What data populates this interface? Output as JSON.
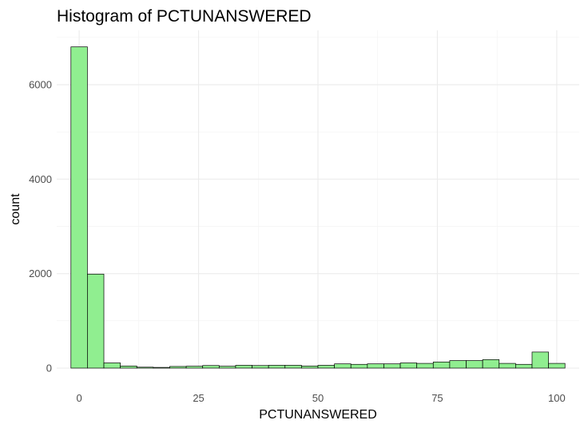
{
  "chart_data": {
    "type": "bar",
    "title": "Histogram of PCTUNANSWERED",
    "xlabel": "PCTUNANSWERED",
    "ylabel": "count",
    "bin_width": 3.448,
    "bin_centers": [
      0,
      3.448,
      6.897,
      10.345,
      13.793,
      17.241,
      20.69,
      24.138,
      27.586,
      31.034,
      34.483,
      37.931,
      41.379,
      44.828,
      48.276,
      51.724,
      55.172,
      58.621,
      62.069,
      65.517,
      68.966,
      72.414,
      75.862,
      79.31,
      82.759,
      86.207,
      89.655,
      93.103,
      96.552,
      100
    ],
    "values": [
      6800,
      1990,
      110,
      45,
      20,
      15,
      35,
      40,
      55,
      40,
      60,
      55,
      60,
      60,
      45,
      60,
      90,
      80,
      90,
      90,
      110,
      100,
      130,
      160,
      160,
      180,
      100,
      80,
      340,
      100
    ],
    "xlim": [
      -4.7,
      104.7
    ],
    "ylim": [
      0,
      7150
    ],
    "x_ticks": [
      0,
      25,
      50,
      75,
      100
    ],
    "y_ticks": [
      0,
      2000,
      4000,
      6000
    ],
    "x_tick_labels": [
      "0",
      "25",
      "50",
      "75",
      "100"
    ],
    "y_tick_labels": [
      "0",
      "2000",
      "4000",
      "6000"
    ],
    "bar_fill": "#90ee90",
    "bar_outline": "#000000",
    "grid": true,
    "legend": "none"
  }
}
